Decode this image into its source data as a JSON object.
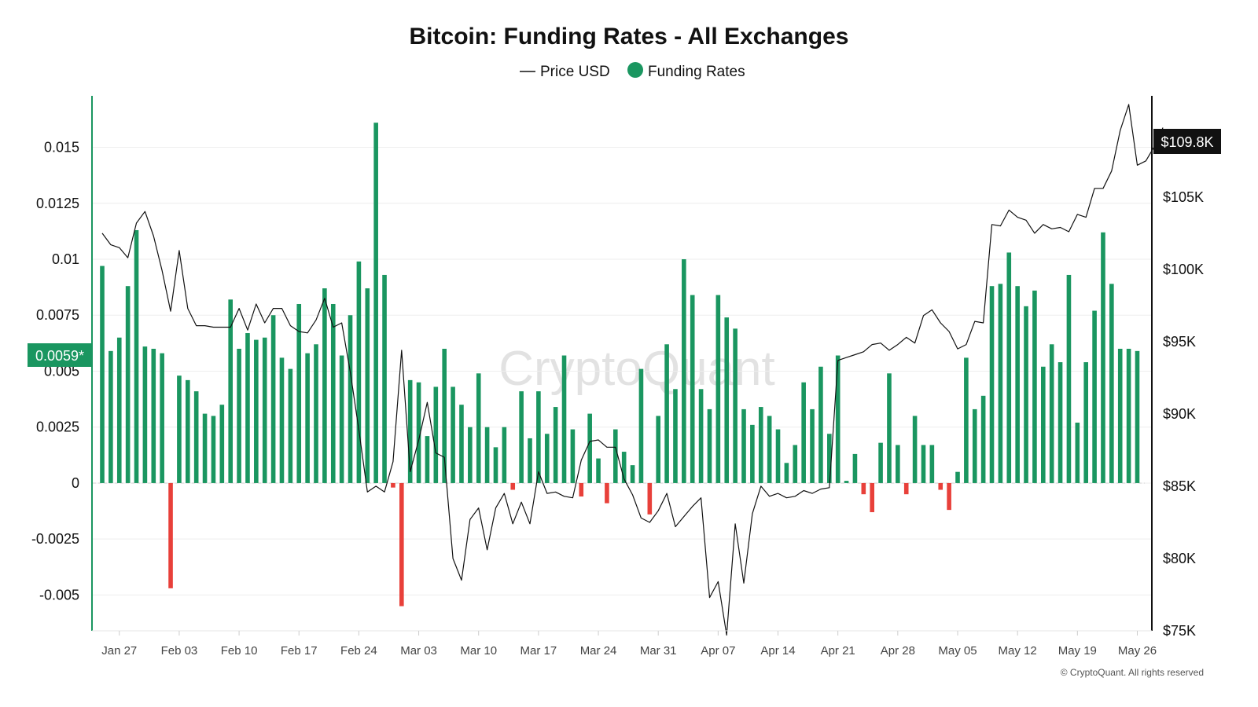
{
  "chart_data": {
    "type": "bar",
    "title": "Bitcoin: Funding Rates - All Exchanges",
    "legend": [
      {
        "label": "Price USD",
        "marker": "line",
        "color": "#111111"
      },
      {
        "label": "Funding Rates",
        "marker": "dot",
        "color": "#1a9660"
      }
    ],
    "left_axis": {
      "ylim": [
        -0.0066,
        0.0173
      ],
      "ticks": [
        0.015,
        0.0125,
        0.01,
        0.0075,
        0.005,
        0.0025,
        0,
        -0.0025,
        -0.005
      ],
      "tick_labels": [
        "0.015",
        "0.0125",
        "0.01",
        "0.0075",
        "0.005",
        "0.0025",
        "0",
        "-0.0025",
        "-0.005"
      ]
    },
    "right_axis": {
      "ylim": [
        75000,
        112000
      ],
      "ticks": [
        75000,
        80000,
        85000,
        90000,
        95000,
        100000,
        105000
      ],
      "tick_labels": [
        "$75K",
        "$80K",
        "$85K",
        "$90K",
        "$95K",
        "$100K",
        "$105K"
      ]
    },
    "x_axis": {
      "range_days": [
        0,
        123
      ],
      "ticks": [
        {
          "day": 2,
          "label": "Jan 27"
        },
        {
          "day": 9,
          "label": "Feb 03"
        },
        {
          "day": 16,
          "label": "Feb 10"
        },
        {
          "day": 23,
          "label": "Feb 17"
        },
        {
          "day": 30,
          "label": "Feb 24"
        },
        {
          "day": 37,
          "label": "Mar 03"
        },
        {
          "day": 44,
          "label": "Mar 10"
        },
        {
          "day": 51,
          "label": "Mar 17"
        },
        {
          "day": 58,
          "label": "Mar 24"
        },
        {
          "day": 65,
          "label": "Mar 31"
        },
        {
          "day": 72,
          "label": "Apr 07"
        },
        {
          "day": 79,
          "label": "Apr 14"
        },
        {
          "day": 86,
          "label": "Apr 21"
        },
        {
          "day": 93,
          "label": "Apr 28"
        },
        {
          "day": 100,
          "label": "May 05"
        },
        {
          "day": 107,
          "label": "May 12"
        },
        {
          "day": 114,
          "label": "May 19"
        },
        {
          "day": 121,
          "label": "May 26"
        }
      ]
    },
    "funding_rate_values": [
      0.0097,
      0.0059,
      0.0065,
      0.0088,
      0.0113,
      0.0061,
      0.006,
      0.0058,
      -0.0047,
      0.0048,
      0.0046,
      0.0041,
      0.0031,
      0.003,
      0.0035,
      0.0082,
      0.006,
      0.0067,
      0.0064,
      0.0065,
      0.0075,
      0.0056,
      0.0051,
      0.008,
      0.0058,
      0.0062,
      0.0087,
      0.008,
      0.0057,
      0.0075,
      0.0099,
      0.0087,
      0.0161,
      0.0093,
      -0.0002,
      -0.0055,
      0.0046,
      0.0045,
      0.0021,
      0.0043,
      0.006,
      0.0043,
      0.0035,
      0.0025,
      0.0049,
      0.0025,
      0.0016,
      0.0025,
      -0.0003,
      0.0041,
      0.002,
      0.0041,
      0.0022,
      0.0034,
      0.0057,
      0.0024,
      -0.0006,
      0.0031,
      0.0011,
      -0.0009,
      0.0024,
      0.0014,
      0.0008,
      0.0051,
      -0.0014,
      0.003,
      0.0062,
      0.0042,
      0.01,
      0.0084,
      0.0042,
      0.0033,
      0.0084,
      0.0074,
      0.0069,
      0.0033,
      0.0026,
      0.0034,
      0.003,
      0.0024,
      0.0009,
      0.0017,
      0.0045,
      0.0033,
      0.0052,
      0.0022,
      0.0057,
      0.0001,
      0.0013,
      -0.0005,
      -0.0013,
      0.0018,
      0.0049,
      0.0017,
      -0.0005,
      0.003,
      0.0017,
      0.0017,
      -0.0003,
      -0.0012,
      0.0005,
      0.0056,
      0.0033,
      0.0039,
      0.0088,
      0.0089,
      0.0103,
      0.0088,
      0.0079,
      0.0086,
      0.0052,
      0.0062,
      0.0054,
      0.0093,
      0.0027,
      0.0054,
      0.0077,
      0.0112,
      0.0089,
      0.006,
      0.006,
      0.0059
    ],
    "price_usd_values": [
      102500,
      101700,
      101500,
      100800,
      103200,
      104000,
      102300,
      99900,
      97100,
      101300,
      97300,
      96100,
      96100,
      96000,
      96000,
      96000,
      97300,
      95800,
      97600,
      96300,
      97300,
      97300,
      96100,
      95700,
      95600,
      96500,
      98000,
      96000,
      96300,
      92900,
      88900,
      84600,
      85000,
      84600,
      86700,
      94400,
      86000,
      88200,
      90800,
      87300,
      87000,
      80000,
      78500,
      82700,
      83500,
      80600,
      83500,
      84500,
      82400,
      83900,
      82400,
      86000,
      84500,
      84600,
      84300,
      84200,
      86800,
      88100,
      88200,
      87700,
      87700,
      85500,
      84400,
      82800,
      82500,
      83300,
      84500,
      82200,
      82900,
      83600,
      84200,
      77300,
      78400,
      74700,
      82400,
      78300,
      83100,
      85000,
      84300,
      84500,
      84200,
      84300,
      84700,
      84500,
      84800,
      84900,
      93700,
      93900,
      94100,
      94300,
      94800,
      94900,
      94400,
      94800,
      95300,
      94900,
      96800,
      97200,
      96300,
      95700,
      94500,
      94800,
      96400,
      96300,
      103100,
      103000,
      104100,
      103600,
      103400,
      102500,
      103100,
      102800,
      102900,
      102600,
      103800,
      103600,
      105600,
      105600,
      106800,
      109600,
      111400,
      107200,
      107500,
      108500,
      109800
    ],
    "current_price_label": "$109.8K",
    "current_rate_label": "0.0059*",
    "positive_color": "#1a9660",
    "negative_color": "#e8403a",
    "price_line_color": "#111111"
  },
  "watermark": "CryptoQuant",
  "copyright": "© CryptoQuant. All rights reserved"
}
